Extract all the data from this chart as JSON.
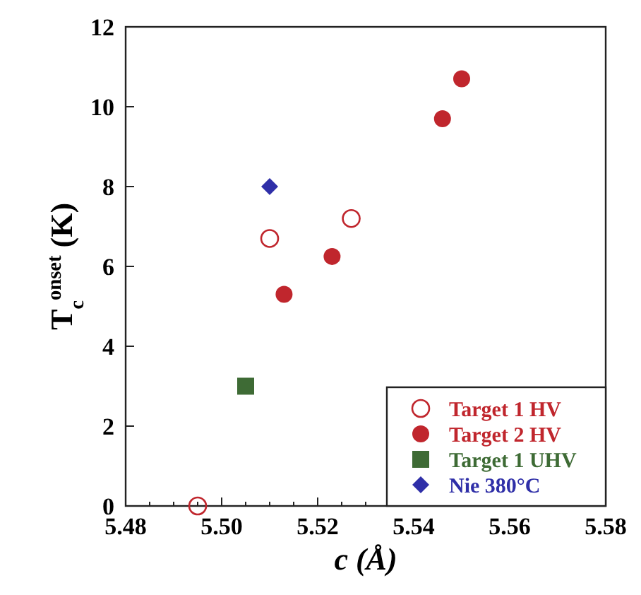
{
  "chart_data": {
    "type": "scatter",
    "xlabel": "c (Å)",
    "ylabel": "T$_{c}$$^{onset}$ (K)",
    "xlim": [
      5.48,
      5.58
    ],
    "xticks": [
      {
        "value": 5.48,
        "label": "5.48"
      },
      {
        "value": 5.485,
        "label": null
      },
      {
        "value": 5.5,
        "label": "5.50"
      },
      {
        "value": 5.49,
        "label": null
      },
      {
        "value": 5.495,
        "label": null
      },
      {
        "value": 5.505,
        "label": null
      },
      {
        "value": 5.51,
        "label": null
      },
      {
        "value": 5.515,
        "label": null
      },
      {
        "value": 5.52,
        "label": "5.52"
      },
      {
        "value": 5.525,
        "label": null
      },
      {
        "value": 5.53,
        "label": null
      },
      {
        "value": 5.535,
        "label": null
      },
      {
        "value": 5.54,
        "label": "5.54"
      },
      {
        "value": 5.545,
        "label": null
      },
      {
        "value": 5.55,
        "label": null
      },
      {
        "value": 5.555,
        "label": null
      },
      {
        "value": 5.56,
        "label": "5.56"
      },
      {
        "value": 5.565,
        "label": null
      },
      {
        "value": 5.57,
        "label": null
      },
      {
        "value": 5.575,
        "label": null
      },
      {
        "value": 5.58,
        "label": "5.58"
      }
    ],
    "ylim": [
      0,
      12
    ],
    "yticks": [
      0,
      2,
      4,
      6,
      8,
      10,
      12
    ],
    "grid": false,
    "legend": "bottom right",
    "series": [
      {
        "name": "Target 1 HV",
        "color": "#c0262d",
        "marker": "circle-open",
        "x": [
          5.495,
          5.51,
          5.527
        ],
        "values": [
          0,
          6.7,
          7.2
        ]
      },
      {
        "name": "Target 2 HV",
        "color": "#c0262d",
        "marker": "circle",
        "x": [
          5.513,
          5.523,
          5.546,
          5.55
        ],
        "values": [
          5.3,
          6.25,
          9.7,
          10.7
        ]
      },
      {
        "name": "Target 1 UHV",
        "color": "#3e6b35",
        "marker": "square",
        "x": [
          5.505
        ],
        "values": [
          3
        ]
      },
      {
        "name": "Nie 380°C",
        "color": "#2f2fa8",
        "marker": "diamond",
        "x": [
          5.51
        ],
        "values": [
          8
        ]
      }
    ]
  }
}
